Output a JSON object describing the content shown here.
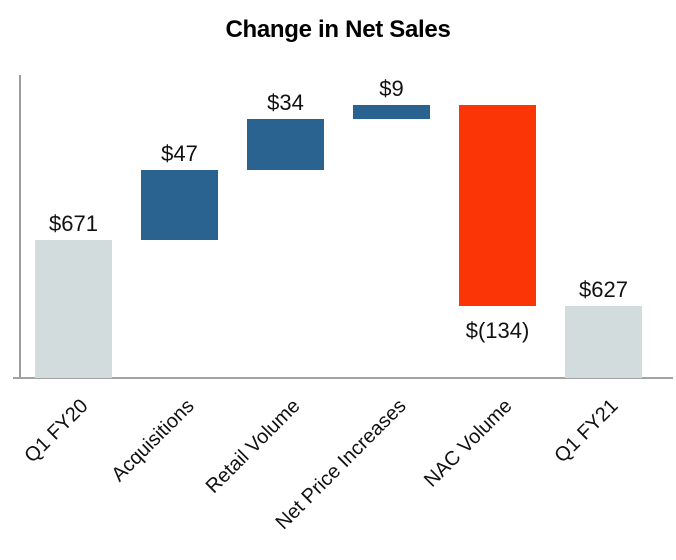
{
  "chart_data": {
    "type": "bar",
    "subtype": "waterfall",
    "title": "Change in Net Sales",
    "categories": [
      "Q1 FY20",
      "Acquisitions",
      "Retail Volume",
      "Net Price Increases",
      "NAC Volume",
      "Q1 FY21"
    ],
    "values": [
      671,
      47,
      34,
      9,
      -134,
      627
    ],
    "value_labels": [
      "$671",
      "$47",
      "$34",
      "$9",
      "$(134)",
      "$627"
    ],
    "bar_roles": [
      "total",
      "increase",
      "increase",
      "increase",
      "decrease",
      "total"
    ],
    "series": [
      {
        "name": "cumulative",
        "values": [
          671,
          718,
          752,
          761,
          627,
          627
        ]
      }
    ],
    "colors": {
      "total": "#d3dcdd",
      "increase": "#2b6390",
      "decrease": "#fb3505",
      "axis_line": "#a3a3a3",
      "title_text": "#000000",
      "label_text": "#111111"
    },
    "xlabel": "",
    "ylabel": "",
    "layout_hints": {
      "grid": false,
      "legend": false,
      "y_axis_tick_labels": false,
      "x_labels_rotated_degrees": -45,
      "base_truncated": true,
      "approx_axis_range": [
        579,
        781
      ],
      "negative_label_below_bar": true
    }
  }
}
